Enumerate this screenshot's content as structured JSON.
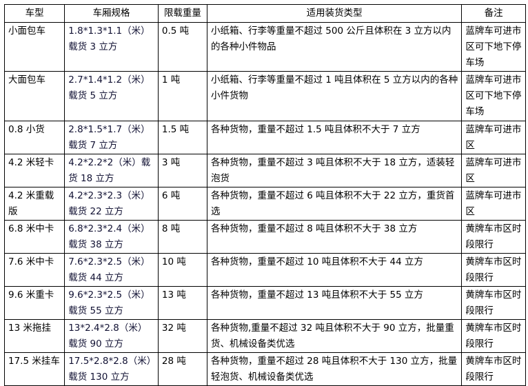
{
  "table": {
    "headers": [
      "车型",
      "车厢规格",
      "限载重量",
      "适用装货类型",
      "备注"
    ],
    "rows": [
      {
        "type": "小面包车",
        "spec": "1.8*1.3*1.1（米）载货 3 立方",
        "load": "0.5 吨",
        "goods": "小纸箱、行李等重量不超过 500 公斤且体积在 3 立方以内的各种小件物品",
        "note": "蓝牌车可进市区可下地下停车场"
      },
      {
        "type": "大面包车",
        "spec": "2.7*1.4*1.2（米）载货 5 立方",
        "load": "1 吨",
        "goods": "小纸箱、行李等重量不超过 1 吨且体积在 5 立方以内的各种小件货物",
        "note": "蓝牌车可进市区可下地下停车场"
      },
      {
        "type": "0.8 小货",
        "spec": "2.8*1.5*1.7（米）载货 7 立方",
        "load": "1.5 吨",
        "goods": "各种货物，重量不超过 1.5 吨且体积不大于 7 立方",
        "note": "蓝牌车可进市区"
      },
      {
        "type": "4.2 米轻卡",
        "spec": "4.2*2.2*2（米）载货 18 立方",
        "load": "3 吨",
        "goods": "各种货物，重量不超过 3 吨且体积不大于 18 立方，适装轻泡货",
        "note": "蓝牌车可进市区"
      },
      {
        "type": "4.2 米重载版",
        "spec": "4.2*2.3*2.3（米）载货 22 立方",
        "load": "6 吨",
        "goods": "各种货物，重量不超过 6 吨且体积不大于 22 立方，重货首选",
        "note": "蓝牌车可进市区"
      },
      {
        "type": "6.8 米中卡",
        "spec": "6.8*2.3*2.4（米）载货 38 立方",
        "load": "8 吨",
        "goods": "各种货物，重量不超过 8 吨且体积不大于 38 立方",
        "note": "黄牌车市区时段限行"
      },
      {
        "type": "7.6 米中卡",
        "spec": "7.6*2.3*2.5（米）载货 44 立方",
        "load": "10 吨",
        "goods": "各种货物，重量不超过 10 吨且体积不大于 44 立方",
        "note": "黄牌车市区时段限行"
      },
      {
        "type": "9.6 米重卡",
        "spec": "9.6*2.3*2.5（米）载货 55 立方",
        "load": "13 吨",
        "goods": "各种货物，重量不超过 13 吨且体积不大于 55 立方",
        "note": "黄牌车市区时段限行"
      },
      {
        "type": "13 米拖挂",
        "spec": "13*2.4*2.8（米）载货 90 立方",
        "load": "32 吨",
        "goods": "各种货物,重量不超过 32 吨且体积不大于 90 立方，批量重货、机械设备类优选",
        "note": "黄牌车市区时段限行"
      },
      {
        "type": "17.5 米挂车",
        "spec": "17.5*2.8*2.8（米）载货 130 立方",
        "load": "28 吨",
        "goods": "各种货物，重量不超过 28 吨且体积不大于 130 立方，批量轻泡货、机械设备类优选",
        "note": "黄牌车市区时段限行"
      }
    ]
  }
}
